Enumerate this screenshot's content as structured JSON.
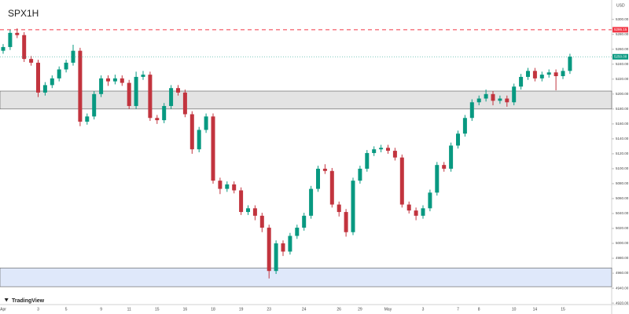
{
  "chart_data": {
    "type": "candlestick",
    "title": "SPX1H",
    "brand": "TradingView",
    "currency": "USD",
    "categories": [
      "Apr",
      null,
      null,
      null,
      null,
      "3",
      null,
      null,
      null,
      "5",
      null,
      null,
      null,
      null,
      "9",
      null,
      null,
      null,
      "11",
      null,
      null,
      null,
      "15",
      null,
      null,
      null,
      "16",
      null,
      null,
      null,
      "18",
      null,
      null,
      null,
      "19",
      null,
      null,
      null,
      "23",
      null,
      null,
      null,
      null,
      "24",
      null,
      null,
      null,
      null,
      "26",
      null,
      null,
      "29",
      null,
      null,
      null,
      "May",
      null,
      null,
      null,
      null,
      "3",
      null,
      null,
      null,
      null,
      "7",
      null,
      null,
      "8",
      null,
      null,
      null,
      null,
      "10",
      null,
      null,
      "14",
      null,
      null,
      null,
      "15",
      null
    ],
    "open": [
      5258,
      5263,
      5282,
      5279,
      5247,
      5242,
      5202,
      5212,
      5221,
      5233,
      5242,
      5258,
      5163,
      5170,
      5200,
      5221,
      5217,
      5221,
      5215,
      5184,
      5223,
      5226,
      5168,
      5165,
      5184,
      5208,
      5202,
      5173,
      5126,
      5152,
      5170,
      5084,
      5073,
      5079,
      5071,
      5042,
      5047,
      5037,
      5021,
      4963,
      5000,
      4989,
      5010,
      5021,
      5037,
      5073,
      5100,
      5097,
      5052,
      5042,
      5015,
      5084,
      5100,
      5121,
      5126,
      5128,
      5124,
      5115,
      5052,
      5044,
      5037,
      5047,
      5068,
      5105,
      5100,
      5131,
      5147,
      5168,
      5189,
      5194,
      5200,
      5191,
      5194,
      5189,
      5210,
      5223,
      5231,
      5221,
      5226,
      5229,
      5224,
      5231
    ],
    "high": [
      5267,
      5286,
      5288,
      5283,
      5251,
      5246,
      5216,
      5225,
      5237,
      5246,
      5266,
      5262,
      5174,
      5204,
      5225,
      5225,
      5226,
      5225,
      5219,
      5230,
      5231,
      5230,
      5172,
      5188,
      5212,
      5212,
      5206,
      5177,
      5156,
      5174,
      5174,
      5088,
      5083,
      5083,
      5075,
      5051,
      5051,
      5041,
      5025,
      5004,
      5004,
      5014,
      5025,
      5041,
      5077,
      5104,
      5106,
      5101,
      5056,
      5046,
      5088,
      5104,
      5125,
      5130,
      5132,
      5132,
      5128,
      5119,
      5056,
      5048,
      5051,
      5072,
      5109,
      5109,
      5135,
      5151,
      5172,
      5193,
      5198,
      5206,
      5204,
      5198,
      5198,
      5214,
      5227,
      5235,
      5235,
      5230,
      5233,
      5233,
      5235,
      5254
    ],
    "low": [
      5254,
      5259,
      5275,
      5243,
      5238,
      5196,
      5198,
      5208,
      5217,
      5229,
      5238,
      5157,
      5159,
      5166,
      5196,
      5211,
      5213,
      5211,
      5180,
      5180,
      5219,
      5164,
      5160,
      5161,
      5180,
      5198,
      5169,
      5120,
      5122,
      5148,
      5080,
      5066,
      5069,
      5067,
      5038,
      5038,
      5031,
      5015,
      4953,
      4959,
      4983,
      4985,
      5006,
      5017,
      5033,
      5069,
      5093,
      5048,
      5036,
      5009,
      5011,
      5080,
      5096,
      5117,
      5122,
      5120,
      5111,
      5048,
      5040,
      5031,
      5033,
      5043,
      5064,
      5096,
      5096,
      5127,
      5143,
      5164,
      5185,
      5190,
      5185,
      5187,
      5183,
      5185,
      5206,
      5219,
      5217,
      5217,
      5222,
      5205,
      5220,
      5227
    ],
    "close": [
      5263,
      5282,
      5279,
      5247,
      5242,
      5202,
      5212,
      5221,
      5233,
      5242,
      5258,
      5163,
      5170,
      5200,
      5221,
      5217,
      5221,
      5215,
      5184,
      5223,
      5226,
      5168,
      5165,
      5184,
      5208,
      5202,
      5173,
      5126,
      5152,
      5170,
      5084,
      5073,
      5079,
      5071,
      5042,
      5047,
      5037,
      5021,
      4963,
      5000,
      4989,
      5010,
      5021,
      5037,
      5073,
      5100,
      5097,
      5052,
      5042,
      5015,
      5084,
      5100,
      5121,
      5126,
      5128,
      5124,
      5115,
      5052,
      5044,
      5037,
      5047,
      5068,
      5105,
      5100,
      5131,
      5147,
      5168,
      5189,
      5194,
      5200,
      5191,
      5194,
      5189,
      5210,
      5223,
      5231,
      5221,
      5226,
      5229,
      5224,
      5231,
      5250
    ],
    "up_color": "#089981",
    "down_color": "#c2343e",
    "zones": [
      {
        "low": 5180,
        "high": 5204,
        "color": "#e3e3e3"
      },
      {
        "low": 4942,
        "high": 4967,
        "color": "#dfe8fa"
      }
    ],
    "resistance": {
      "value": 5286.15,
      "label": "5286.15",
      "color": "#f23645"
    },
    "last_price": {
      "value": 5250,
      "label": "5250.00",
      "color": "#089981"
    },
    "ylim": [
      4918,
      5326
    ],
    "yticks": [
      {
        "value": 4920,
        "label": "4920.00"
      },
      {
        "value": 4940,
        "label": "4940.00"
      },
      {
        "value": 4960,
        "label": "4960.00"
      },
      {
        "value": 4980,
        "label": "4980.00"
      },
      {
        "value": 5000,
        "label": "5000.00"
      },
      {
        "value": 5020,
        "label": "5020.00"
      },
      {
        "value": 5040,
        "label": "5040.00"
      },
      {
        "value": 5060,
        "label": "5060.00"
      },
      {
        "value": 5080,
        "label": "5080.00"
      },
      {
        "value": 5100,
        "label": "5100.00"
      },
      {
        "value": 5120,
        "label": "5120.00"
      },
      {
        "value": 5140,
        "label": "5140.00"
      },
      {
        "value": 5160,
        "label": "5160.00"
      },
      {
        "value": 5180,
        "label": "5180.00"
      },
      {
        "value": 5200,
        "label": "5200.00"
      },
      {
        "value": 5220,
        "label": "5220.00"
      },
      {
        "value": 5240,
        "label": "5240.00"
      },
      {
        "value": 5260,
        "label": "5260.00"
      },
      {
        "value": 5280,
        "label": "5280.00"
      },
      {
        "value": 5300,
        "label": "5300.00"
      }
    ]
  }
}
